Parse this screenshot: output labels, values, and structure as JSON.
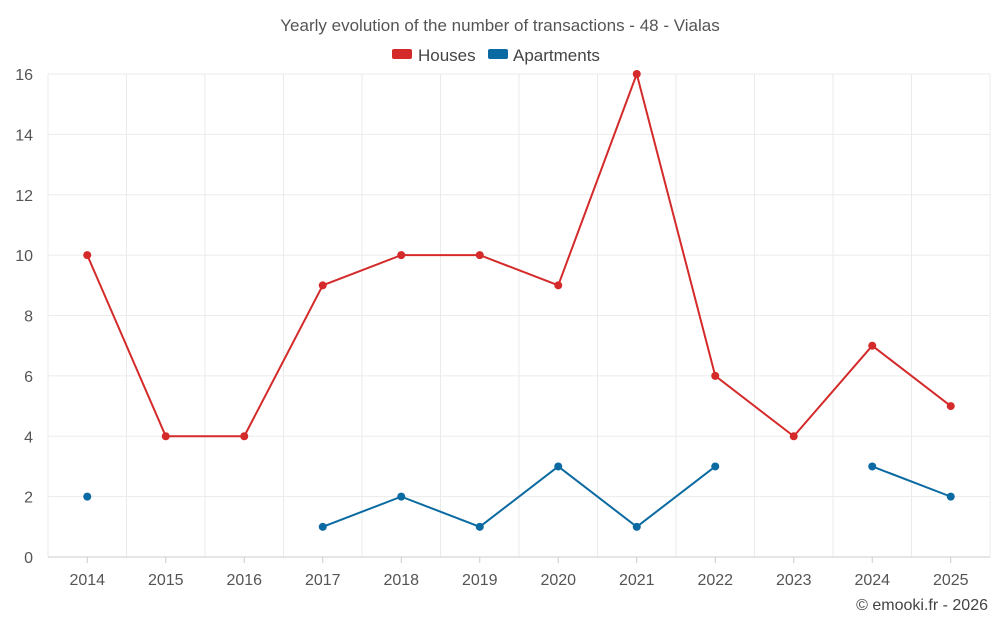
{
  "chart_data": {
    "type": "line",
    "title": "Yearly evolution of the number of transactions - 48 - Vialas",
    "categories": [
      "2014",
      "2015",
      "2016",
      "2017",
      "2018",
      "2019",
      "2020",
      "2021",
      "2022",
      "2023",
      "2024",
      "2025"
    ],
    "series": [
      {
        "name": "Houses",
        "color": "#d42a2a",
        "values": [
          10,
          4,
          4,
          9,
          10,
          10,
          9,
          16,
          6,
          4,
          7,
          5
        ]
      },
      {
        "name": "Apartments",
        "color": "#0a6aa1",
        "values": [
          2,
          null,
          null,
          1,
          2,
          1,
          3,
          1,
          3,
          null,
          3,
          2
        ]
      }
    ],
    "ylim": [
      0,
      16
    ],
    "yticks": [
      0,
      2,
      4,
      6,
      8,
      10,
      12,
      14,
      16
    ],
    "xlabel": "",
    "ylabel": "",
    "legend": "top-center",
    "grid": true
  },
  "credit": "© emooki.fr - 2026"
}
